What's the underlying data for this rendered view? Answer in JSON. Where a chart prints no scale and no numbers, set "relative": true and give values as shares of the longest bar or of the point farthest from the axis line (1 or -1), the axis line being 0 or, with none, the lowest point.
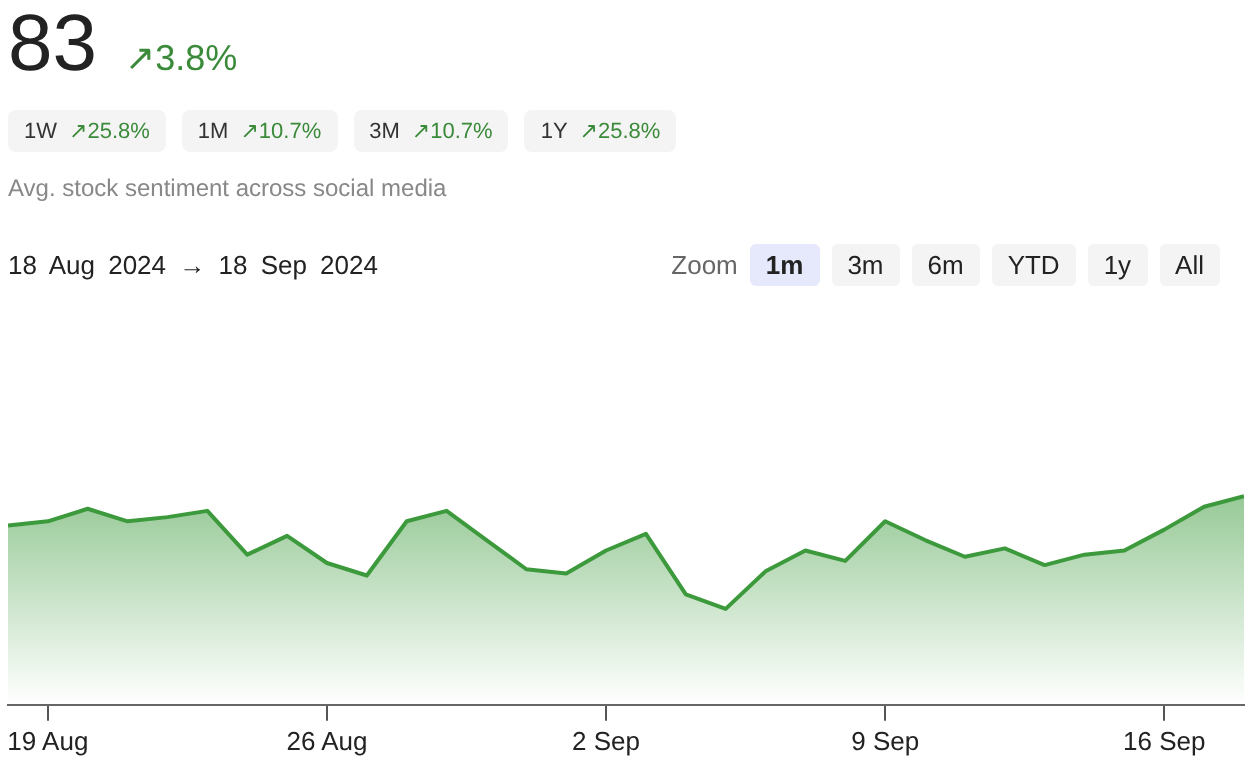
{
  "chart_data": {
    "type": "area",
    "title": "83",
    "subtitle": "Avg. stock sentiment across social media",
    "annotations": [
      "↗3.8%",
      "1W ↗25.8%",
      "1M ↗10.7%",
      "3M ↗10.7%",
      "1Y ↗25.8%",
      "18 Aug 2024 → 18 Sep 2024",
      "Zoom",
      "1m",
      "3m",
      "6m",
      "YTD",
      "1y",
      "All"
    ],
    "relative": true,
    "x": [
      "2024-08-18",
      "2024-08-19",
      "2024-08-20",
      "2024-08-21",
      "2024-08-22",
      "2024-08-23",
      "2024-08-24",
      "2024-08-25",
      "2024-08-26",
      "2024-08-27",
      "2024-08-28",
      "2024-08-29",
      "2024-08-30",
      "2024-08-31",
      "2024-09-01",
      "2024-09-02",
      "2024-09-03",
      "2024-09-04",
      "2024-09-05",
      "2024-09-06",
      "2024-09-07",
      "2024-09-08",
      "2024-09-09",
      "2024-09-10",
      "2024-09-11",
      "2024-09-12",
      "2024-09-13",
      "2024-09-14",
      "2024-09-15",
      "2024-09-16",
      "2024-09-17",
      "2024-09-18"
    ],
    "xlim": [
      "2024-08-18",
      "2024-09-18"
    ],
    "xticks": [
      {
        "value": "2024-08-19",
        "label": "19 Aug"
      },
      {
        "value": "2024-08-26",
        "label": "26 Aug"
      },
      {
        "value": "2024-09-02",
        "label": "2 Sep"
      },
      {
        "value": "2024-09-09",
        "label": "9 Sep"
      },
      {
        "value": "2024-09-16",
        "label": "16 Sep"
      }
    ],
    "series": [
      {
        "color": "#3c9a3c",
        "values": [
          0.86,
          0.88,
          0.94,
          0.88,
          0.9,
          0.93,
          0.72,
          0.81,
          0.68,
          0.62,
          0.88,
          0.93,
          0.79,
          0.65,
          0.63,
          0.74,
          0.82,
          0.53,
          0.46,
          0.64,
          0.74,
          0.69,
          0.88,
          0.79,
          0.71,
          0.75,
          0.67,
          0.72,
          0.74,
          0.84,
          0.95,
          1
        ]
      }
    ],
    "legend": false,
    "marker": "none",
    "line_style": "solid",
    "tick_labels": "x"
  }
}
